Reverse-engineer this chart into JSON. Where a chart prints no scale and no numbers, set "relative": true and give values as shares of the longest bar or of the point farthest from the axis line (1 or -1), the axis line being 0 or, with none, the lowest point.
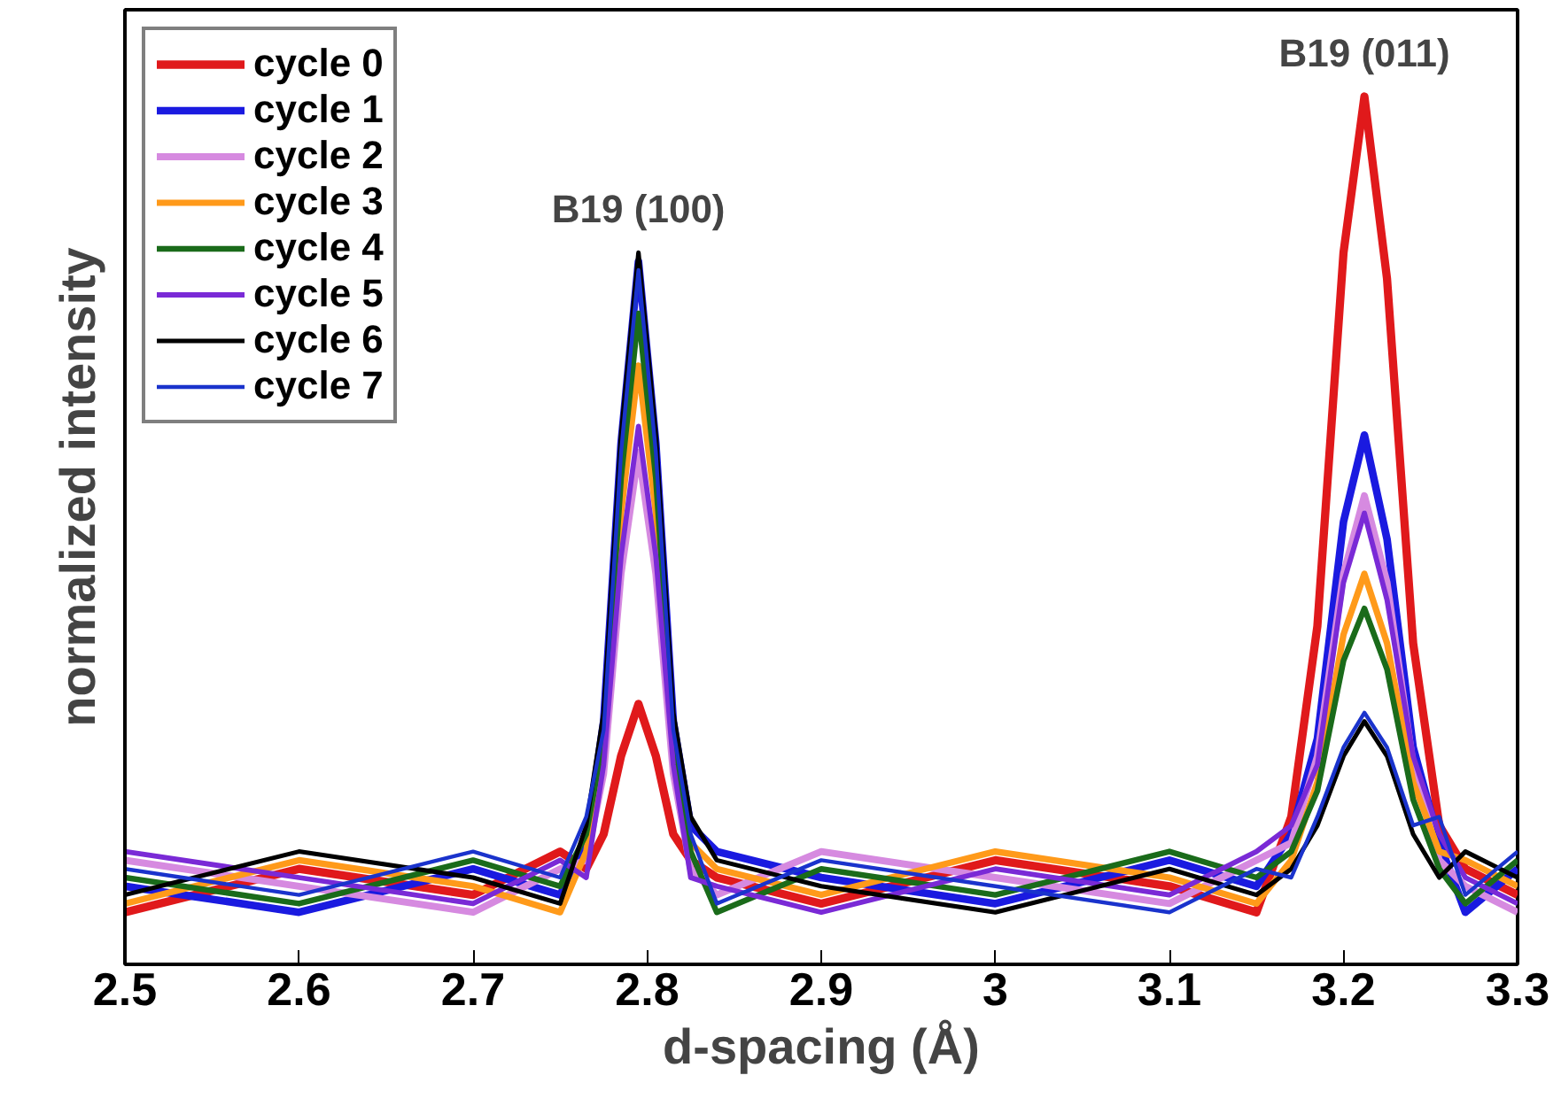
{
  "chart_data": {
    "type": "line",
    "relative": true,
    "xlabel": "d-spacing (Å)",
    "ylabel": "normalized intensity",
    "xlim": [
      2.5,
      3.3
    ],
    "xticks": [
      2.5,
      2.6,
      2.7,
      2.8,
      2.9,
      3,
      3.1,
      3.2,
      3.3
    ],
    "x": [
      2.5,
      2.6,
      2.7,
      2.75,
      2.765,
      2.775,
      2.785,
      2.795,
      2.805,
      2.815,
      2.825,
      2.84,
      2.9,
      3.0,
      3.1,
      3.15,
      3.17,
      3.185,
      3.2,
      3.212,
      3.225,
      3.24,
      3.255,
      3.27,
      3.3
    ],
    "legend": "top left",
    "grid": false,
    "line_style": "solid",
    "annotations": [
      {
        "text": "B19 (100)",
        "x": 2.795,
        "y": 0.82
      },
      {
        "text": "B19 (011)",
        "x": 3.212,
        "y": 1.0
      }
    ],
    "series": [
      {
        "name": "cycle 0",
        "color": "#e0191b",
        "values": [
          0.06,
          0.11,
          0.08,
          0.13,
          0.11,
          0.15,
          0.24,
          0.3,
          0.24,
          0.15,
          0.12,
          0.1,
          0.07,
          0.12,
          0.09,
          0.06,
          0.17,
          0.39,
          0.82,
          1.0,
          0.79,
          0.37,
          0.16,
          0.11,
          0.08
        ]
      },
      {
        "name": "cycle 1",
        "color": "#1a1ae0",
        "values": [
          0.09,
          0.06,
          0.11,
          0.08,
          0.14,
          0.28,
          0.6,
          0.81,
          0.6,
          0.28,
          0.16,
          0.13,
          0.1,
          0.07,
          0.12,
          0.09,
          0.15,
          0.26,
          0.51,
          0.61,
          0.49,
          0.25,
          0.14,
          0.06,
          0.11
        ]
      },
      {
        "name": "cycle 2",
        "color": "#d68ae0",
        "values": [
          0.12,
          0.09,
          0.06,
          0.11,
          0.12,
          0.22,
          0.45,
          0.59,
          0.45,
          0.22,
          0.11,
          0.08,
          0.13,
          0.1,
          0.07,
          0.12,
          0.14,
          0.24,
          0.45,
          0.54,
          0.44,
          0.23,
          0.12,
          0.09,
          0.06
        ]
      },
      {
        "name": "cycle 3",
        "color": "#ff9a1a",
        "values": [
          0.07,
          0.12,
          0.09,
          0.06,
          0.13,
          0.25,
          0.52,
          0.69,
          0.52,
          0.25,
          0.14,
          0.11,
          0.08,
          0.13,
          0.1,
          0.07,
          0.12,
          0.21,
          0.38,
          0.45,
          0.37,
          0.21,
          0.13,
          0.12,
          0.09
        ]
      },
      {
        "name": "cycle 4",
        "color": "#1a6b1a",
        "values": [
          0.1,
          0.07,
          0.12,
          0.09,
          0.15,
          0.26,
          0.56,
          0.75,
          0.56,
          0.26,
          0.13,
          0.06,
          0.11,
          0.08,
          0.13,
          0.1,
          0.13,
          0.2,
          0.35,
          0.41,
          0.34,
          0.19,
          0.11,
          0.07,
          0.12
        ]
      },
      {
        "name": "cycle 5",
        "color": "#7a2ad6",
        "values": [
          0.13,
          0.1,
          0.07,
          0.12,
          0.1,
          0.23,
          0.47,
          0.62,
          0.47,
          0.23,
          0.1,
          0.09,
          0.06,
          0.11,
          0.08,
          0.13,
          0.16,
          0.23,
          0.44,
          0.52,
          0.42,
          0.24,
          0.15,
          0.1,
          0.07
        ]
      },
      {
        "name": "cycle 6",
        "color": "#000000",
        "values": [
          0.08,
          0.13,
          0.1,
          0.07,
          0.16,
          0.29,
          0.61,
          0.82,
          0.61,
          0.29,
          0.17,
          0.12,
          0.09,
          0.06,
          0.11,
          0.08,
          0.11,
          0.16,
          0.24,
          0.28,
          0.24,
          0.15,
          0.1,
          0.13,
          0.1
        ]
      },
      {
        "name": "cycle 7",
        "color": "#1a33cc",
        "values": [
          0.11,
          0.08,
          0.13,
          0.1,
          0.17,
          0.27,
          0.59,
          0.8,
          0.59,
          0.27,
          0.15,
          0.07,
          0.12,
          0.09,
          0.06,
          0.11,
          0.1,
          0.17,
          0.25,
          0.29,
          0.25,
          0.16,
          0.17,
          0.08,
          0.13
        ]
      }
    ]
  }
}
